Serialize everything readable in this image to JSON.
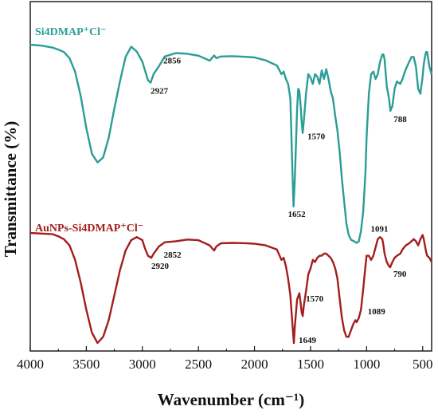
{
  "chart_data": {
    "type": "line",
    "xlabel": "Wavenumber (cm⁻¹)",
    "ylabel": "Transmittance (%)",
    "xlim": [
      4000,
      420
    ],
    "x_reversed": true,
    "x_ticks": [
      4000,
      3500,
      3000,
      2500,
      2000,
      1500,
      1000,
      500
    ],
    "y_ticks_shown": false,
    "grid": false,
    "series": [
      {
        "name": "Si4DMAP⁺Cl⁻",
        "color": "#2a9d96",
        "x": [
          4000,
          3900,
          3800,
          3750,
          3700,
          3650,
          3600,
          3550,
          3500,
          3450,
          3400,
          3350,
          3300,
          3250,
          3200,
          3150,
          3100,
          3050,
          3000,
          2980,
          2950,
          2927,
          2900,
          2856,
          2800,
          2700,
          2600,
          2500,
          2400,
          2360,
          2340,
          2300,
          2200,
          2100,
          2000,
          1900,
          1800,
          1760,
          1740,
          1720,
          1700,
          1680,
          1660,
          1652,
          1640,
          1620,
          1610,
          1600,
          1590,
          1580,
          1570,
          1560,
          1540,
          1520,
          1500,
          1480,
          1460,
          1440,
          1420,
          1400,
          1380,
          1360,
          1340,
          1320,
          1300,
          1280,
          1260,
          1240,
          1220,
          1200,
          1180,
          1160,
          1140,
          1120,
          1100,
          1091,
          1070,
          1050,
          1030,
          1010,
          1000,
          980,
          960,
          940,
          920,
          900,
          880,
          860,
          850,
          840,
          820,
          800,
          788,
          770,
          750,
          730,
          700,
          680,
          650,
          620,
          600,
          580,
          560,
          540,
          520,
          500,
          490,
          480,
          470,
          460,
          440,
          420
        ],
        "y": [
          100,
          99.6,
          98.8,
          98,
          97,
          94.5,
          89,
          79,
          66,
          55.5,
          52,
          54,
          62,
          74,
          85,
          95,
          99.2,
          97.2,
          93,
          90,
          85.5,
          84.5,
          88,
          91,
          95.2,
          96.6,
          96.3,
          95.5,
          93.5,
          95.6,
          94.5,
          95.2,
          95.3,
          95.1,
          94.8,
          93.6,
          91.5,
          88,
          89,
          86,
          84,
          78,
          46,
          34,
          45,
          74,
          82,
          81,
          76,
          69,
          64,
          69,
          80,
          88,
          86.5,
          84,
          88,
          87,
          84,
          89.5,
          86,
          90,
          86,
          81,
          78,
          71,
          65,
          56,
          45,
          36,
          27,
          22.5,
          20.5,
          20,
          19.5,
          19.2,
          19.7,
          24,
          32,
          48,
          62,
          80,
          88,
          89,
          86,
          88,
          93,
          96,
          96,
          94,
          83,
          78,
          73,
          75,
          82,
          85,
          84,
          86,
          90,
          93,
          95,
          95,
          91,
          82,
          80,
          87,
          92,
          95,
          97,
          97,
          91,
          88
        ]
      },
      {
        "name": "AuNPs-Si4DMAP⁺Cl⁻",
        "color": "#a31d1d",
        "x": [
          4000,
          3900,
          3800,
          3750,
          3700,
          3650,
          3600,
          3550,
          3500,
          3450,
          3400,
          3350,
          3300,
          3250,
          3200,
          3150,
          3100,
          3050,
          3000,
          2980,
          2950,
          2920,
          2900,
          2852,
          2800,
          2700,
          2600,
          2500,
          2400,
          2360,
          2340,
          2300,
          2200,
          2100,
          2000,
          1900,
          1800,
          1760,
          1740,
          1720,
          1700,
          1680,
          1660,
          1649,
          1640,
          1620,
          1600,
          1590,
          1580,
          1570,
          1560,
          1540,
          1520,
          1500,
          1480,
          1460,
          1440,
          1420,
          1400,
          1380,
          1360,
          1340,
          1320,
          1300,
          1280,
          1260,
          1240,
          1220,
          1200,
          1180,
          1160,
          1140,
          1120,
          1100,
          1089,
          1070,
          1050,
          1030,
          1010,
          1000,
          980,
          960,
          940,
          920,
          900,
          880,
          860,
          850,
          840,
          820,
          800,
          790,
          770,
          750,
          730,
          700,
          680,
          650,
          620,
          600,
          580,
          560,
          540,
          520,
          500,
          490,
          480,
          470,
          460,
          440,
          420
        ],
        "y": [
          100,
          99.7,
          99.4,
          98.4,
          97,
          94,
          87,
          76,
          63,
          52,
          47,
          50,
          58,
          70,
          82,
          91.5,
          96.5,
          98,
          96.5,
          93,
          89,
          88,
          90,
          93.5,
          95.5,
          96,
          96.8,
          96.5,
          94,
          91.5,
          93.5,
          95,
          95.2,
          95.1,
          94.8,
          94,
          92,
          87,
          88,
          84,
          78,
          70,
          55,
          47,
          55,
          68,
          71,
          67,
          62,
          60,
          65,
          72,
          80,
          83,
          87,
          86,
          88,
          89,
          89,
          90,
          90,
          89,
          88,
          86,
          83,
          78,
          68,
          59,
          53,
          50,
          50,
          53,
          56,
          58,
          57,
          59,
          63,
          73,
          84,
          89,
          89,
          87,
          89,
          93,
          97,
          98,
          97,
          94,
          90,
          86,
          84,
          83.5,
          86,
          88,
          89,
          90,
          92,
          94,
          95,
          96,
          97,
          96,
          94,
          97,
          99,
          97,
          94,
          91,
          89,
          88,
          86
        ]
      }
    ],
    "annotations": [
      {
        "series": 0,
        "text": "2856",
        "x": 2856
      },
      {
        "series": 0,
        "text": "2927",
        "x": 2927
      },
      {
        "series": 0,
        "text": "1652",
        "x": 1652
      },
      {
        "series": 0,
        "text": "1570",
        "x": 1570
      },
      {
        "series": 0,
        "text": "1091",
        "x": 1091
      },
      {
        "series": 0,
        "text": "788",
        "x": 788
      },
      {
        "series": 1,
        "text": "2852",
        "x": 2852
      },
      {
        "series": 1,
        "text": "2920",
        "x": 2920
      },
      {
        "series": 1,
        "text": "1649",
        "x": 1649
      },
      {
        "series": 1,
        "text": "1570",
        "x": 1570
      },
      {
        "series": 1,
        "text": "1089",
        "x": 1089
      },
      {
        "series": 1,
        "text": "790",
        "x": 790
      }
    ]
  }
}
